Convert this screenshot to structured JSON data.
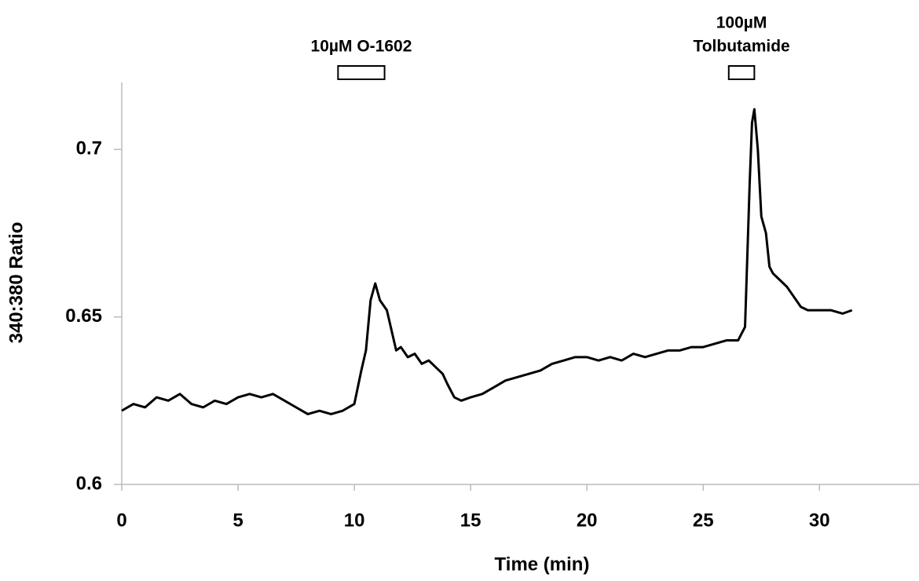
{
  "chart_data": {
    "type": "line",
    "xlabel": "Time (min)",
    "ylabel": "340:380 Ratio",
    "x": [
      0,
      0.5,
      1,
      1.5,
      2,
      2.5,
      3,
      3.5,
      4,
      4.5,
      5,
      5.5,
      6,
      6.5,
      7,
      7.5,
      8,
      8.5,
      9,
      9.5,
      10,
      10.3,
      10.5,
      10.7,
      10.9,
      11.1,
      11.4,
      11.6,
      11.8,
      12,
      12.3,
      12.6,
      12.9,
      13.2,
      13.5,
      13.8,
      14,
      14.3,
      14.6,
      15,
      15.5,
      16,
      16.5,
      17,
      17.5,
      18,
      18.5,
      19,
      19.5,
      20,
      20.5,
      21,
      21.5,
      22,
      22.5,
      23,
      23.5,
      24,
      24.5,
      25,
      25.5,
      26,
      26.5,
      26.8,
      27,
      27.1,
      27.2,
      27.35,
      27.5,
      27.7,
      27.85,
      28,
      28.3,
      28.6,
      28.9,
      29.2,
      29.5,
      30,
      30.5,
      31,
      31.4
    ],
    "values": [
      0.622,
      0.624,
      0.623,
      0.626,
      0.625,
      0.627,
      0.624,
      0.623,
      0.625,
      0.624,
      0.626,
      0.627,
      0.626,
      0.627,
      0.625,
      0.623,
      0.621,
      0.622,
      0.621,
      0.622,
      0.624,
      0.634,
      0.64,
      0.655,
      0.66,
      0.655,
      0.652,
      0.646,
      0.64,
      0.641,
      0.638,
      0.639,
      0.636,
      0.637,
      0.635,
      0.633,
      0.63,
      0.626,
      0.625,
      0.626,
      0.627,
      0.629,
      0.631,
      0.632,
      0.633,
      0.634,
      0.636,
      0.637,
      0.638,
      0.638,
      0.637,
      0.638,
      0.637,
      0.639,
      0.638,
      0.639,
      0.64,
      0.64,
      0.641,
      0.641,
      0.642,
      0.643,
      0.643,
      0.647,
      0.69,
      0.708,
      0.712,
      0.7,
      0.68,
      0.675,
      0.665,
      0.663,
      0.661,
      0.659,
      0.656,
      0.653,
      0.652,
      0.652,
      0.652,
      0.651,
      0.652
    ],
    "color": "#000000",
    "xlim": [
      0,
      34.28
    ],
    "xticks": [
      0,
      5,
      10,
      15,
      20,
      25,
      30
    ],
    "ylim": [
      0.6,
      0.72
    ],
    "yticks": [
      0.6,
      0.65,
      0.7
    ],
    "annotations": [
      {
        "lines": [
          "10µM O-1602"
        ],
        "start": 9.3,
        "end": 11.3
      },
      {
        "lines": [
          "100µM",
          "Tolbutamide"
        ],
        "start": 26.1,
        "end": 27.2
      }
    ]
  }
}
